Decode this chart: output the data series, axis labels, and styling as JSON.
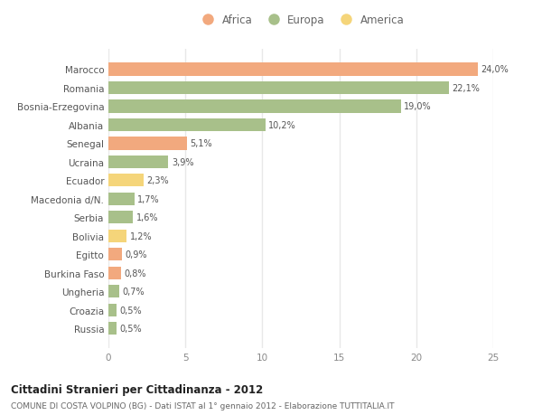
{
  "categories": [
    "Marocco",
    "Romania",
    "Bosnia-Erzegovina",
    "Albania",
    "Senegal",
    "Ucraina",
    "Ecuador",
    "Macedonia d/N.",
    "Serbia",
    "Bolivia",
    "Egitto",
    "Burkina Faso",
    "Ungheria",
    "Croazia",
    "Russia"
  ],
  "values": [
    24.0,
    22.1,
    19.0,
    10.2,
    5.1,
    3.9,
    2.3,
    1.7,
    1.6,
    1.2,
    0.9,
    0.8,
    0.7,
    0.5,
    0.5
  ],
  "labels": [
    "24,0%",
    "22,1%",
    "19,0%",
    "10,2%",
    "5,1%",
    "3,9%",
    "2,3%",
    "1,7%",
    "1,6%",
    "1,2%",
    "0,9%",
    "0,8%",
    "0,7%",
    "0,5%",
    "0,5%"
  ],
  "continent": [
    "Africa",
    "Europa",
    "Europa",
    "Europa",
    "Africa",
    "Europa",
    "America",
    "Europa",
    "Europa",
    "America",
    "Africa",
    "Africa",
    "Europa",
    "Europa",
    "Europa"
  ],
  "colors": {
    "Africa": "#F2A97E",
    "Europa": "#A8C08A",
    "America": "#F5D57A"
  },
  "title": "Cittadini Stranieri per Cittadinanza - 2012",
  "subtitle": "COMUNE DI COSTA VOLPINO (BG) - Dati ISTAT al 1° gennaio 2012 - Elaborazione TUTTITALIA.IT",
  "xlim": [
    0,
    25
  ],
  "xticks": [
    0,
    5,
    10,
    15,
    20,
    25
  ],
  "background_color": "#ffffff",
  "grid_color": "#e8e8e8",
  "bar_height": 0.7
}
